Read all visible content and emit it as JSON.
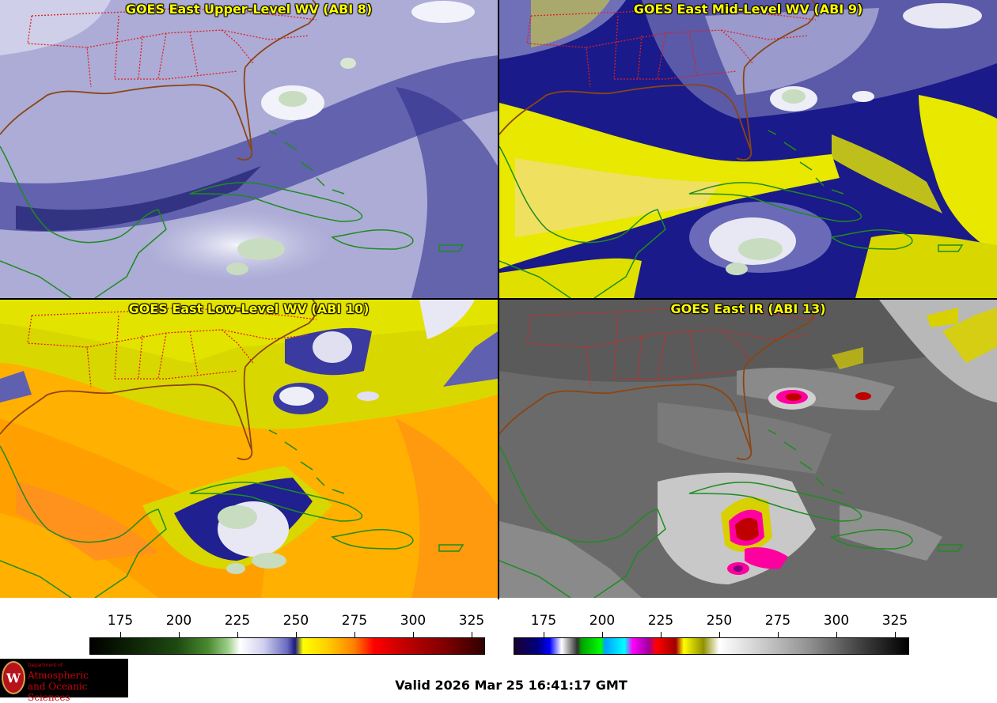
{
  "panels": [
    {
      "id": "upper",
      "title": "GOES East Upper-Level WV (ABI 8)"
    },
    {
      "id": "mid",
      "title": "GOES East Mid-Level WV (ABI 9)"
    },
    {
      "id": "low",
      "title": "GOES East Low-Level WV (ABI 10)"
    },
    {
      "id": "ir",
      "title": "GOES East IR (ABI 13)"
    }
  ],
  "colorbars": {
    "wv": {
      "ticks": [
        "175",
        "200",
        "225",
        "250",
        "275",
        "300",
        "325"
      ]
    },
    "ir": {
      "ticks": [
        "175",
        "200",
        "225",
        "250",
        "275",
        "300",
        "325"
      ]
    }
  },
  "logo": {
    "dept": "Department of",
    "line1": "Atmospheric",
    "line2": "and Oceanic Sciences",
    "seal_letter": "W"
  },
  "valid_time": "Valid 2026 Mar 25 16:41:17 GMT",
  "colors": {
    "title": "#ffff00",
    "state_borders": "#e02020",
    "coastline_us": "#8b4513",
    "coastline_other": "#1e8c1e"
  }
}
